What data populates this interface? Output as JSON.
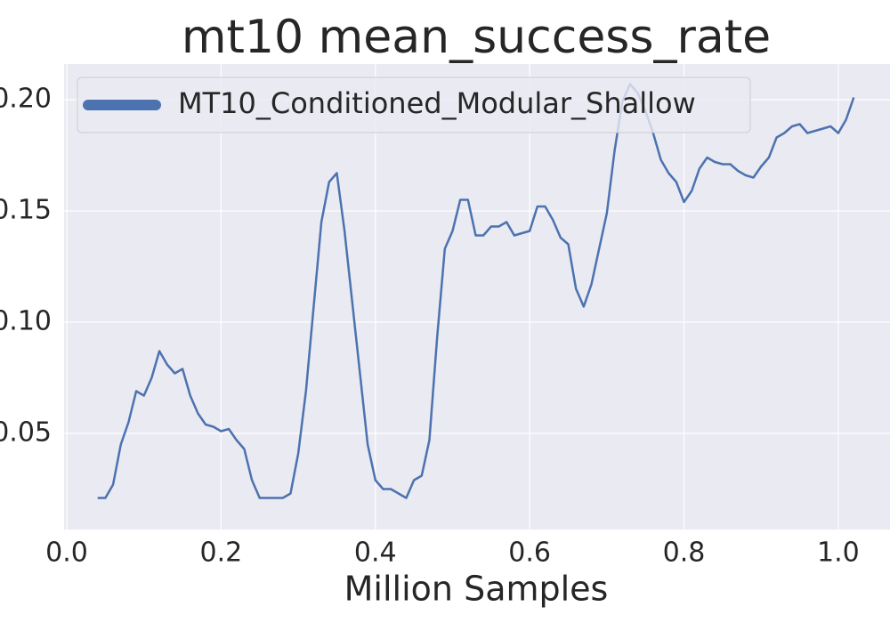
{
  "chart_data": {
    "type": "line",
    "title": "mt10 mean_success_rate",
    "xlabel": "Million Samples",
    "x": [
      0.04,
      0.05,
      0.06,
      0.07,
      0.08,
      0.09,
      0.1,
      0.11,
      0.12,
      0.13,
      0.14,
      0.15,
      0.16,
      0.17,
      0.18,
      0.19,
      0.2,
      0.21,
      0.22,
      0.23,
      0.24,
      0.25,
      0.26,
      0.27,
      0.28,
      0.29,
      0.3,
      0.31,
      0.32,
      0.33,
      0.34,
      0.35,
      0.36,
      0.37,
      0.38,
      0.39,
      0.4,
      0.41,
      0.42,
      0.43,
      0.44,
      0.45,
      0.46,
      0.47,
      0.48,
      0.49,
      0.5,
      0.51,
      0.52,
      0.53,
      0.54,
      0.55,
      0.56,
      0.57,
      0.58,
      0.59,
      0.6,
      0.61,
      0.62,
      0.63,
      0.64,
      0.65,
      0.66,
      0.67,
      0.68,
      0.69,
      0.7,
      0.71,
      0.72,
      0.73,
      0.74,
      0.75,
      0.76,
      0.77,
      0.78,
      0.79,
      0.8,
      0.81,
      0.82,
      0.83,
      0.84,
      0.85,
      0.86,
      0.87,
      0.88,
      0.89,
      0.9,
      0.91,
      0.92,
      0.93,
      0.94,
      0.95,
      0.96,
      0.97,
      0.98,
      0.99,
      1.0,
      1.01,
      1.02
    ],
    "series": [
      {
        "name": "MT10_Conditioned_Modular_Shallow",
        "color": "#4c72b0",
        "values": [
          0.021,
          0.021,
          0.027,
          0.045,
          0.055,
          0.069,
          0.067,
          0.075,
          0.087,
          0.081,
          0.077,
          0.079,
          0.067,
          0.059,
          0.054,
          0.053,
          0.051,
          0.052,
          0.047,
          0.043,
          0.029,
          0.021,
          0.021,
          0.021,
          0.021,
          0.023,
          0.041,
          0.069,
          0.107,
          0.145,
          0.163,
          0.167,
          0.141,
          0.109,
          0.077,
          0.045,
          0.029,
          0.025,
          0.025,
          0.023,
          0.021,
          0.029,
          0.031,
          0.047,
          0.093,
          0.133,
          0.141,
          0.155,
          0.155,
          0.139,
          0.139,
          0.143,
          0.143,
          0.145,
          0.139,
          0.14,
          0.141,
          0.152,
          0.152,
          0.146,
          0.138,
          0.135,
          0.115,
          0.107,
          0.117,
          0.133,
          0.149,
          0.177,
          0.199,
          0.207,
          0.203,
          0.195,
          0.185,
          0.173,
          0.167,
          0.163,
          0.154,
          0.159,
          0.169,
          0.174,
          0.172,
          0.171,
          0.171,
          0.168,
          0.166,
          0.165,
          0.17,
          0.174,
          0.183,
          0.185,
          0.188,
          0.189,
          0.185,
          0.186,
          0.187,
          0.188,
          0.185,
          0.191,
          0.201
        ]
      }
    ],
    "xlim": [
      -0.0035,
      1.067
    ],
    "ylim": [
      0.0068,
      0.216
    ],
    "xticks": [
      {
        "value": 0,
        "label": "0.0"
      },
      0.2,
      0.4,
      0.6,
      0.8,
      {
        "value": 1,
        "label": "1.0"
      }
    ],
    "yticks": [
      0.05,
      {
        "value": 0.1,
        "label": "0.10"
      },
      0.15,
      {
        "value": 0.2,
        "label": "0.20"
      }
    ],
    "grid": true,
    "legend": "upper left"
  }
}
